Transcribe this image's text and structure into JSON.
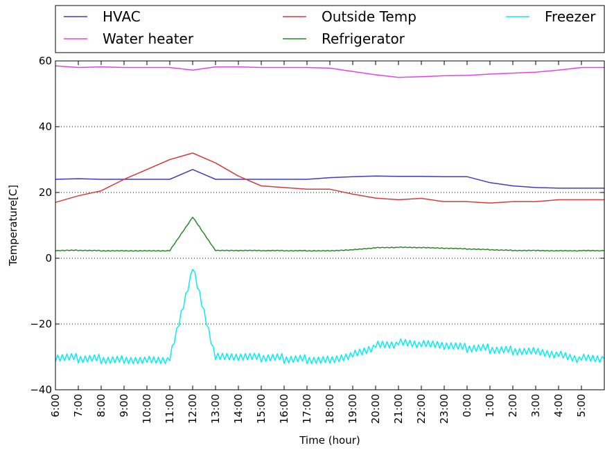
{
  "chart_data": {
    "type": "line",
    "xlabel": "Time (hour)",
    "ylabel": "Temperature[C]",
    "ylim": [
      -40,
      60
    ],
    "yticks": [
      "60",
      "40",
      "20",
      "0",
      "−20",
      "−40"
    ],
    "ytick_values": [
      60,
      40,
      20,
      0,
      -20,
      -40
    ],
    "grid": "dotted horizontal at y ticks",
    "legend_position": "top (outside plot, 3 columns)",
    "x": [
      "6:00",
      "7:00",
      "8:00",
      "9:00",
      "10:00",
      "11:00",
      "12:00",
      "13:00",
      "14:00",
      "15:00",
      "16:00",
      "17:00",
      "18:00",
      "19:00",
      "20:00",
      "21:00",
      "22:00",
      "23:00",
      "0:00",
      "1:00",
      "2:00",
      "3:00",
      "4:00",
      "5:00"
    ],
    "series": [
      {
        "name": "HVAC",
        "color": "#3b3bc8",
        "values": [
          24,
          24.2,
          24,
          24,
          24,
          24,
          27,
          24,
          24,
          24,
          24,
          24,
          24.5,
          24.8,
          25,
          24.9,
          24.9,
          24.8,
          24.8,
          23,
          22,
          21.5,
          21.3,
          21.3
        ]
      },
      {
        "name": "Water heater",
        "color": "#e840e8",
        "values": [
          58.5,
          58,
          58.2,
          58,
          58,
          58,
          57.2,
          58.2,
          58.2,
          58,
          58,
          58,
          57.8,
          56.8,
          55.8,
          55,
          55.2,
          55.5,
          55.6,
          56,
          56.3,
          56.6,
          57.2,
          58
        ]
      },
      {
        "name": "Outside Temp",
        "color": "#d83a3a",
        "values": [
          17,
          19,
          20.5,
          24,
          27,
          30,
          32,
          29,
          25,
          22,
          21.5,
          21,
          21,
          19.5,
          18.3,
          17.8,
          18.2,
          17.2,
          17.2,
          16.8,
          17.2,
          17.2,
          17.8,
          17.8
        ]
      },
      {
        "name": "Refrigerator",
        "color": "#228b22",
        "values": [
          2.3,
          2.4,
          2.3,
          2.3,
          2.3,
          2.3,
          12.5,
          2.3,
          2.3,
          2.3,
          2.3,
          2.3,
          2.3,
          2.6,
          3.2,
          3.3,
          3.2,
          3,
          2.8,
          2.6,
          2.4,
          2.4,
          2.3,
          2.3
        ]
      },
      {
        "name": "Freezer",
        "color": "#00f0f0",
        "values": [
          -30.5,
          -30.5,
          -30.5,
          -30.5,
          -30.5,
          -30.5,
          -3,
          -30.5,
          -30.5,
          -30.5,
          -30.5,
          -30.5,
          -30.5,
          -29,
          -26.5,
          -26,
          -26.5,
          -27,
          -27.5,
          -27.5,
          -27.8,
          -27.8,
          -29,
          -30.5
        ]
      }
    ]
  }
}
